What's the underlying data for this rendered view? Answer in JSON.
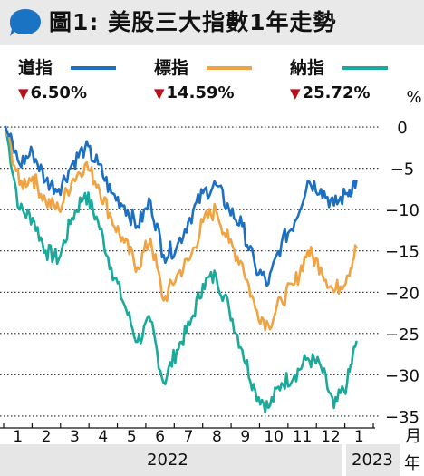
{
  "title": "圖1: 美股三大指數1年走勢",
  "icon": "speech-bubble-icon",
  "colors": {
    "title_bg": "#e9e9e9",
    "badge": "#1b73c4",
    "dow": "#1d6fc1",
    "sp": "#f0a342",
    "nasdaq": "#1aa99a",
    "down_arrow": "#b8101c",
    "grid": "#222222"
  },
  "legend": [
    {
      "name": "道指",
      "change": "6.50%",
      "direction": "down",
      "color": "#1d6fc1"
    },
    {
      "name": "標指",
      "change": "14.59%",
      "direction": "down",
      "color": "#f0a342"
    },
    {
      "name": "納指",
      "change": "25.72%",
      "direction": "down",
      "color": "#1aa99a"
    }
  ],
  "chart_data": {
    "type": "line",
    "ylabel": "%",
    "xlabel": "月",
    "ylim": [
      -36,
      1
    ],
    "yticks": [
      0,
      -5,
      -10,
      -15,
      -20,
      -25,
      -30,
      -35
    ],
    "grid": "dotted horizontal",
    "legend_position": "top",
    "x_ticks": [
      "1",
      "2",
      "3",
      "4",
      "5",
      "6",
      "7",
      "8",
      "9",
      "10",
      "11",
      "12",
      "1"
    ],
    "year_labels": [
      "2022",
      "2023"
    ],
    "x_unit": "年",
    "x": [
      "2022-01-03",
      "2022-01-18",
      "2022-02-01",
      "2022-02-15",
      "2022-03-01",
      "2022-03-15",
      "2022-03-29",
      "2022-04-12",
      "2022-04-26",
      "2022-05-10",
      "2022-05-24",
      "2022-06-07",
      "2022-06-21",
      "2022-07-05",
      "2022-07-19",
      "2022-08-02",
      "2022-08-16",
      "2022-08-30",
      "2022-09-13",
      "2022-09-27",
      "2022-10-11",
      "2022-10-25",
      "2022-11-08",
      "2022-11-22",
      "2022-12-06",
      "2022-12-20",
      "2023-01-03",
      "2023-01-13"
    ],
    "series": [
      {
        "name": "道指",
        "color": "#1d6fc1",
        "values": [
          0,
          -4.5,
          -3,
          -6.5,
          -7.5,
          -4.5,
          -2.5,
          -4.5,
          -8,
          -9.5,
          -12,
          -9,
          -15.5,
          -14.5,
          -11,
          -8,
          -7,
          -10,
          -12,
          -17,
          -19,
          -14,
          -11.5,
          -6.5,
          -7.5,
          -9.5,
          -8,
          -6.5
        ]
      },
      {
        "name": "標指",
        "color": "#f0a342",
        "values": [
          0,
          -7,
          -6,
          -9,
          -10,
          -6.5,
          -4.5,
          -7,
          -11,
          -14,
          -17,
          -13.5,
          -21,
          -18,
          -16,
          -11.5,
          -10,
          -14,
          -16.5,
          -22,
          -24,
          -21,
          -19,
          -15,
          -17,
          -20,
          -18,
          -14.6
        ]
      },
      {
        "name": "納指",
        "color": "#1aa99a",
        "values": [
          0,
          -10,
          -11,
          -15,
          -16,
          -11,
          -8,
          -11.5,
          -17,
          -21.5,
          -26,
          -23.5,
          -31,
          -27,
          -24,
          -19,
          -18,
          -22,
          -27,
          -32,
          -34,
          -31,
          -30,
          -28,
          -29,
          -34,
          -31,
          -26
        ]
      }
    ]
  }
}
